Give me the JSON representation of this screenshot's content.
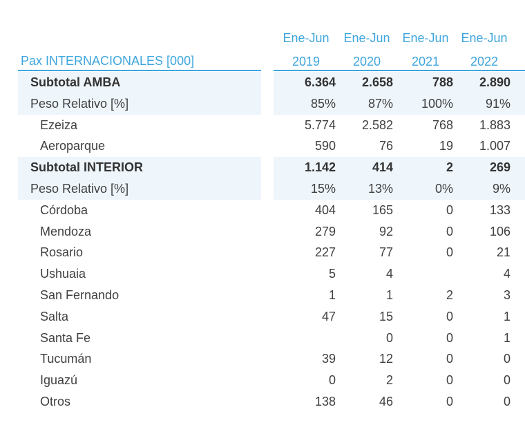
{
  "header": {
    "title": "Pax INTERNACIONALES [000]",
    "period_label": "Ene-Jun",
    "years": [
      "2019",
      "2020",
      "2021",
      "2022"
    ]
  },
  "rows": [
    {
      "label": "Subtotal AMBA",
      "level": 1,
      "bold": true,
      "shaded": true,
      "values": [
        "6.364",
        "2.658",
        "788",
        "2.890"
      ]
    },
    {
      "label": "Peso Relativo [%]",
      "level": 1,
      "bold": false,
      "shaded": true,
      "values": [
        "85%",
        "87%",
        "100%",
        "91%"
      ]
    },
    {
      "label": "Ezeiza",
      "level": 2,
      "bold": false,
      "shaded": false,
      "values": [
        "5.774",
        "2.582",
        "768",
        "1.883"
      ]
    },
    {
      "label": "Aeroparque",
      "level": 2,
      "bold": false,
      "shaded": false,
      "values": [
        "590",
        "76",
        "19",
        "1.007"
      ]
    },
    {
      "label": "Subtotal INTERIOR",
      "level": 1,
      "bold": true,
      "shaded": true,
      "values": [
        "1.142",
        "414",
        "2",
        "269"
      ]
    },
    {
      "label": "Peso Relativo [%]",
      "level": 1,
      "bold": false,
      "shaded": true,
      "values": [
        "15%",
        "13%",
        "0%",
        "9%"
      ]
    },
    {
      "label": "Córdoba",
      "level": 2,
      "bold": false,
      "shaded": false,
      "values": [
        "404",
        "165",
        "0",
        "133"
      ]
    },
    {
      "label": "Mendoza",
      "level": 2,
      "bold": false,
      "shaded": false,
      "values": [
        "279",
        "92",
        "0",
        "106"
      ]
    },
    {
      "label": "Rosario",
      "level": 2,
      "bold": false,
      "shaded": false,
      "values": [
        "227",
        "77",
        "0",
        "21"
      ]
    },
    {
      "label": "Ushuaia",
      "level": 2,
      "bold": false,
      "shaded": false,
      "values": [
        "5",
        "4",
        "",
        "4"
      ]
    },
    {
      "label": "San Fernando",
      "level": 2,
      "bold": false,
      "shaded": false,
      "values": [
        "1",
        "1",
        "2",
        "3"
      ]
    },
    {
      "label": "Salta",
      "level": 2,
      "bold": false,
      "shaded": false,
      "values": [
        "47",
        "15",
        "0",
        "1"
      ]
    },
    {
      "label": "Santa Fe",
      "level": 2,
      "bold": false,
      "shaded": false,
      "values": [
        "",
        "0",
        "0",
        "1"
      ]
    },
    {
      "label": "Tucumán",
      "level": 2,
      "bold": false,
      "shaded": false,
      "values": [
        "39",
        "12",
        "0",
        "0"
      ]
    },
    {
      "label": "Iguazú",
      "level": 2,
      "bold": false,
      "shaded": false,
      "values": [
        "0",
        "2",
        "0",
        "0"
      ]
    },
    {
      "label": "Otros",
      "level": 2,
      "bold": false,
      "shaded": false,
      "values": [
        "138",
        "46",
        "0",
        "0"
      ]
    }
  ],
  "colors": {
    "accent": "#3ea6dd",
    "row_shade": "#eef5fb",
    "text": "#404040"
  }
}
